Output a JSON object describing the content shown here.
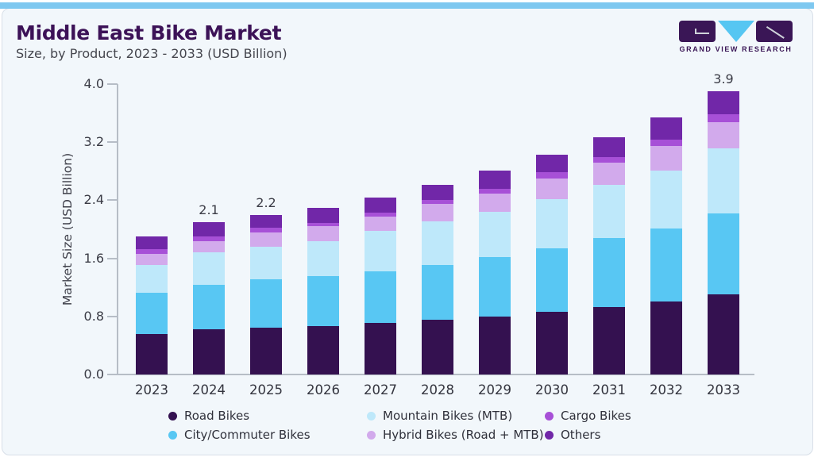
{
  "brand": {
    "logo_text": "GRAND VIEW RESEARCH",
    "logo_dark_color": "#3a1656",
    "logo_triangle_color": "#56c6f2",
    "accent_bar_color": "#7ec8f0"
  },
  "chart_data": {
    "type": "bar",
    "variant": "stacked",
    "title": "Middle East Bike Market",
    "subtitle": "Size, by Product, 2023 - 2033 (USD Billion)",
    "ylabel": "Market Size (USD Billion)",
    "xlabel": "",
    "ylim": [
      0.0,
      4.0
    ],
    "yticks": [
      "0.0",
      "0.8",
      "1.6",
      "2.4",
      "3.2",
      "4.0"
    ],
    "grid": false,
    "legend_position": "bottom",
    "categories": [
      "2023",
      "2024",
      "2025",
      "2026",
      "2027",
      "2028",
      "2029",
      "2030",
      "2031",
      "2032",
      "2033"
    ],
    "series": [
      {
        "name": "Road Bikes",
        "color": "#341150",
        "values": [
          0.56,
          0.62,
          0.65,
          0.67,
          0.71,
          0.75,
          0.8,
          0.86,
          0.93,
          1.0,
          1.1
        ]
      },
      {
        "name": "City/Commuter Bikes",
        "color": "#58c7f3",
        "values": [
          0.57,
          0.62,
          0.66,
          0.68,
          0.71,
          0.76,
          0.82,
          0.88,
          0.95,
          1.01,
          1.12
        ]
      },
      {
        "name": "Mountain Bikes (MTB)",
        "color": "#bee8fa",
        "values": [
          0.38,
          0.44,
          0.45,
          0.49,
          0.56,
          0.6,
          0.62,
          0.67,
          0.73,
          0.8,
          0.9
        ]
      },
      {
        "name": "Hybrid Bikes (Road + MTB)",
        "color": "#d2aaec",
        "values": [
          0.15,
          0.16,
          0.2,
          0.2,
          0.2,
          0.24,
          0.25,
          0.29,
          0.31,
          0.34,
          0.36
        ]
      },
      {
        "name": "Cargo Bikes",
        "color": "#a750d7",
        "values": [
          0.07,
          0.06,
          0.06,
          0.05,
          0.05,
          0.05,
          0.07,
          0.09,
          0.07,
          0.09,
          0.1
        ]
      },
      {
        "name": "Others",
        "color": "#7127a8",
        "values": [
          0.17,
          0.2,
          0.18,
          0.21,
          0.21,
          0.21,
          0.25,
          0.24,
          0.28,
          0.3,
          0.32
        ]
      }
    ],
    "bar_total_labels": [
      "",
      "2.1",
      "2.2",
      "",
      "",
      "",
      "",
      "",
      "",
      "",
      "3.9"
    ]
  }
}
